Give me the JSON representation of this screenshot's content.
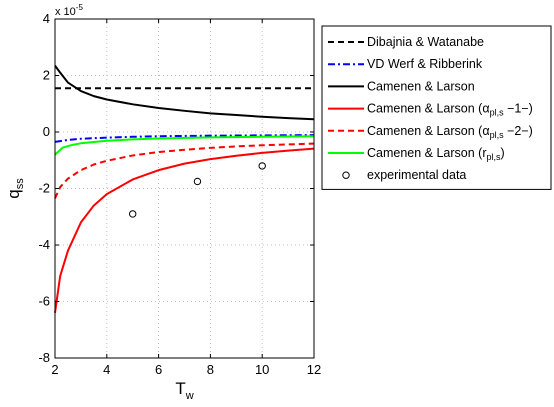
{
  "chart_data": {
    "type": "line",
    "ylabel_main": "q",
    "ylabel_sub": "ss",
    "xlabel_main": "T",
    "xlabel_sub": "w",
    "xlim": [
      2,
      12
    ],
    "ylim": [
      -8,
      4
    ],
    "xticks": [
      2,
      4,
      6,
      8,
      10,
      12
    ],
    "yticks": [
      -8,
      -6,
      -4,
      -2,
      0,
      2,
      4
    ],
    "y_multiplier": "x 10",
    "y_multiplier_exponent": "-5",
    "grid": true,
    "legend_placement": "outside-right",
    "series": [
      {
        "name": "Dibajnia & Watanabe",
        "label_parts": [
          [
            "Dibajnia & Watanabe",
            ""
          ]
        ],
        "color": "#000000",
        "dash": "6,4",
        "style": "line",
        "x": [
          2,
          12
        ],
        "y": [
          1.55,
          1.55
        ]
      },
      {
        "name": "VD Werf & Ribberink",
        "label_parts": [
          [
            "VD Werf & Ribberink",
            ""
          ]
        ],
        "color": "#0000ff",
        "dash": "7,3,2,3",
        "style": "line",
        "x": [
          2,
          2.5,
          3,
          4,
          5,
          6,
          8,
          10,
          12
        ],
        "y": [
          -0.35,
          -0.28,
          -0.24,
          -0.2,
          -0.17,
          -0.15,
          -0.13,
          -0.12,
          -0.11
        ]
      },
      {
        "name": "Camenen & Larson",
        "label_parts": [
          [
            "Camenen & Larson",
            ""
          ]
        ],
        "color": "#000000",
        "dash": "",
        "style": "line",
        "x": [
          2,
          2.2,
          2.5,
          3,
          3.5,
          4,
          5,
          6,
          7,
          8,
          9,
          10,
          11,
          12
        ],
        "y": [
          2.35,
          2.1,
          1.75,
          1.45,
          1.27,
          1.15,
          0.98,
          0.85,
          0.75,
          0.66,
          0.6,
          0.54,
          0.49,
          0.45
        ]
      },
      {
        "name": "Camenen & Larson (α_pl,s −1−)",
        "label_parts": [
          [
            "Camenen & Larson (α",
            ""
          ],
          [
            "pl,s",
            "sub"
          ],
          [
            " −1−)",
            ""
          ]
        ],
        "color": "#ff0000",
        "dash": "",
        "style": "line",
        "x": [
          2,
          2.2,
          2.5,
          3,
          3.5,
          4,
          5,
          6,
          7,
          8,
          9,
          10,
          11,
          12
        ],
        "y": [
          -6.4,
          -5.1,
          -4.2,
          -3.2,
          -2.6,
          -2.2,
          -1.68,
          -1.35,
          -1.12,
          -0.96,
          -0.84,
          -0.74,
          -0.66,
          -0.59
        ]
      },
      {
        "name": "Camenen & Larson (α_pl,s −2−)",
        "label_parts": [
          [
            "Camenen & Larson (α",
            ""
          ],
          [
            "pl,s",
            "sub"
          ],
          [
            " −2−)",
            ""
          ]
        ],
        "color": "#ff0000",
        "dash": "6,4",
        "style": "line",
        "x": [
          2,
          2.2,
          2.5,
          3,
          3.5,
          4,
          5,
          6,
          7,
          8,
          9,
          10,
          11,
          12
        ],
        "y": [
          -2.35,
          -1.95,
          -1.65,
          -1.35,
          -1.15,
          -1.02,
          -0.83,
          -0.71,
          -0.63,
          -0.56,
          -0.51,
          -0.47,
          -0.44,
          -0.41
        ]
      },
      {
        "name": "Camenen & Larson (r_pl,s)",
        "label_parts": [
          [
            "Camenen & Larson (r",
            ""
          ],
          [
            "pl,s",
            "sub"
          ],
          [
            ")",
            ""
          ]
        ],
        "color": "#00ff00",
        "dash": "",
        "style": "line",
        "x": [
          2,
          2.3,
          2.7,
          3,
          4,
          5,
          6,
          8,
          10,
          12
        ],
        "y": [
          -0.8,
          -0.55,
          -0.45,
          -0.4,
          -0.31,
          -0.26,
          -0.23,
          -0.19,
          -0.17,
          -0.15
        ]
      },
      {
        "name": "experimental data",
        "label_parts": [
          [
            "experimental data",
            ""
          ]
        ],
        "color": "#000000",
        "dash": "",
        "style": "marker",
        "x": [
          5,
          7.5,
          10
        ],
        "y": [
          -2.9,
          -1.75,
          -1.2
        ]
      }
    ]
  }
}
